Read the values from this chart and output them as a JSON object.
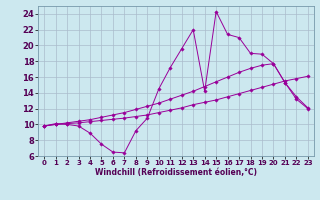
{
  "background_color": "#cce8ef",
  "grid_color": "#aabccc",
  "line_color": "#990099",
  "xlabel": "Windchill (Refroidissement éolien,°C)",
  "xlim": [
    -0.5,
    23.5
  ],
  "ylim": [
    6,
    25
  ],
  "yticks": [
    6,
    8,
    10,
    12,
    14,
    16,
    18,
    20,
    22,
    24
  ],
  "xticks": [
    0,
    1,
    2,
    3,
    4,
    5,
    6,
    7,
    8,
    9,
    10,
    11,
    12,
    13,
    14,
    15,
    16,
    17,
    18,
    19,
    20,
    21,
    22,
    23
  ],
  "series": [
    [
      9.8,
      10.1,
      10.0,
      9.8,
      8.9,
      7.5,
      6.5,
      6.4,
      9.2,
      10.8,
      14.5,
      17.2,
      19.6,
      22.0,
      14.2,
      24.3,
      21.4,
      21.0,
      19.0,
      18.9,
      17.7,
      15.3,
      13.2,
      12.0
    ],
    [
      9.8,
      10.0,
      10.1,
      10.2,
      10.35,
      10.5,
      10.65,
      10.8,
      11.0,
      11.2,
      11.5,
      11.8,
      12.1,
      12.5,
      12.8,
      13.1,
      13.5,
      13.9,
      14.3,
      14.7,
      15.1,
      15.5,
      15.8,
      16.1
    ],
    [
      9.8,
      10.0,
      10.2,
      10.4,
      10.6,
      10.9,
      11.2,
      11.5,
      11.9,
      12.3,
      12.7,
      13.2,
      13.7,
      14.2,
      14.8,
      15.4,
      16.0,
      16.6,
      17.1,
      17.5,
      17.7,
      15.3,
      13.5,
      12.1
    ]
  ],
  "title_fontsize": 7,
  "tick_fontsize_x": 5,
  "tick_fontsize_y": 6,
  "xlabel_fontsize": 5.5
}
